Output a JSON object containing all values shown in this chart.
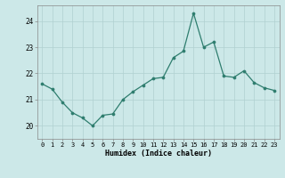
{
  "x": [
    0,
    1,
    2,
    3,
    4,
    5,
    6,
    7,
    8,
    9,
    10,
    11,
    12,
    13,
    14,
    15,
    16,
    17,
    18,
    19,
    20,
    21,
    22,
    23
  ],
  "y": [
    21.6,
    21.4,
    20.9,
    20.5,
    20.3,
    20.0,
    20.4,
    20.45,
    21.0,
    21.3,
    21.55,
    21.8,
    21.85,
    22.6,
    22.85,
    24.3,
    23.0,
    23.2,
    21.9,
    21.85,
    22.1,
    21.65,
    21.45,
    21.35
  ],
  "xlabel": "Humidex (Indice chaleur)",
  "ylim": [
    19.5,
    24.6
  ],
  "xlim": [
    -0.5,
    23.5
  ],
  "line_color": "#2e7d6e",
  "marker_color": "#2e7d6e",
  "bg_color": "#cce8e8",
  "grid_color": "#b0d0d0",
  "yticks": [
    20,
    21,
    22,
    23,
    24
  ],
  "ytick_labels": [
    "20",
    "21",
    "22",
    "23",
    "24"
  ],
  "xticks": [
    0,
    1,
    2,
    3,
    4,
    5,
    6,
    7,
    8,
    9,
    10,
    11,
    12,
    13,
    14,
    15,
    16,
    17,
    18,
    19,
    20,
    21,
    22,
    23
  ]
}
